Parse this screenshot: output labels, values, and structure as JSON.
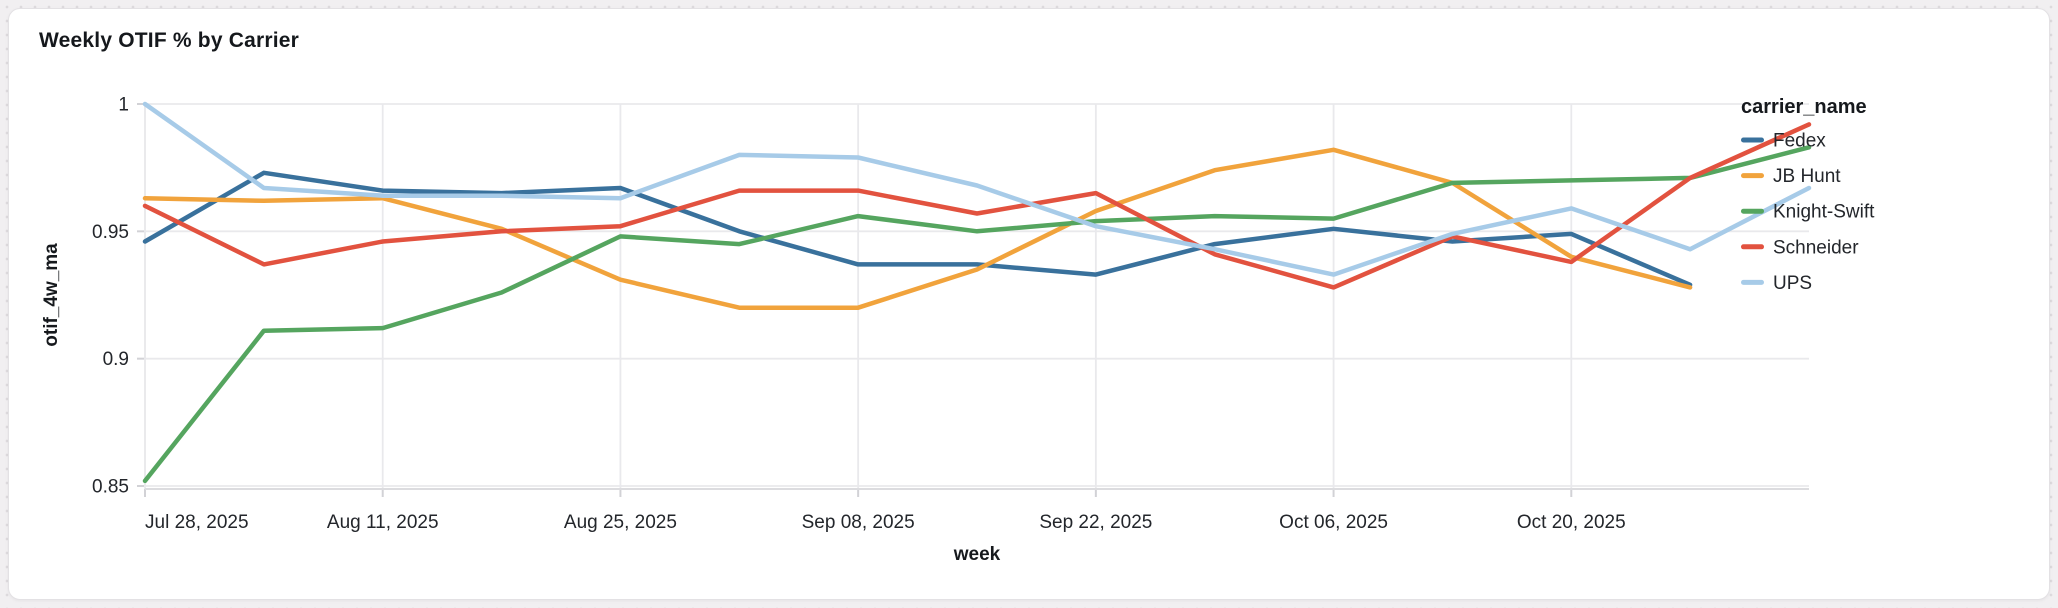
{
  "card": {
    "title": "Weekly OTIF % by Carrier"
  },
  "chart_data": {
    "type": "line",
    "title": "Weekly OTIF % by Carrier",
    "xlabel": "week",
    "ylabel": "otif_4w_ma",
    "legend_title": "carrier_name",
    "legend_position": "right",
    "grid": true,
    "ylim": [
      0.85,
      1.0
    ],
    "y_ticks": [
      {
        "value": 1.0,
        "label": "1"
      },
      {
        "value": 0.95,
        "label": "0.95"
      },
      {
        "value": 0.9,
        "label": "0.9"
      },
      {
        "value": 0.85,
        "label": "0.85"
      }
    ],
    "x": [
      "Jul 28, 2025",
      "Aug 04, 2025",
      "Aug 11, 2025",
      "Aug 18, 2025",
      "Aug 25, 2025",
      "Sep 01, 2025",
      "Sep 08, 2025",
      "Sep 15, 2025",
      "Sep 22, 2025",
      "Sep 29, 2025",
      "Oct 06, 2025",
      "Oct 13, 2025",
      "Oct 20, 2025",
      "Oct 27, 2025",
      "Nov 03, 2025"
    ],
    "x_tick_indices": [
      0,
      2,
      4,
      6,
      8,
      10,
      12
    ],
    "x_tick_labels": [
      "Jul 28, 2025",
      "Aug 11, 2025",
      "Aug 25, 2025",
      "Sep 08, 2025",
      "Sep 22, 2025",
      "Oct 06, 2025",
      "Oct 20, 2025"
    ],
    "series": [
      {
        "name": "Fedex",
        "color": "#39719c",
        "values": [
          0.946,
          0.973,
          0.966,
          0.965,
          0.967,
          0.95,
          0.937,
          0.937,
          0.933,
          0.945,
          0.951,
          0.946,
          0.949,
          0.929
        ]
      },
      {
        "name": "JB Hunt",
        "color": "#f1a33c",
        "values": [
          0.963,
          0.962,
          0.963,
          0.951,
          0.931,
          0.92,
          0.92,
          0.935,
          0.958,
          0.974,
          0.982,
          0.969,
          0.94,
          0.928
        ]
      },
      {
        "name": "Knight-Swift",
        "color": "#55a55f",
        "values": [
          0.852,
          0.911,
          0.912,
          0.926,
          0.948,
          0.945,
          0.956,
          0.95,
          0.954,
          0.956,
          0.955,
          0.969,
          0.97,
          0.971,
          0.983
        ]
      },
      {
        "name": "Schneider",
        "color": "#e2523f",
        "values": [
          0.96,
          0.937,
          0.946,
          0.95,
          0.952,
          0.966,
          0.966,
          0.957,
          0.965,
          0.941,
          0.928,
          0.948,
          0.938,
          0.971,
          0.992
        ]
      },
      {
        "name": "UPS",
        "color": "#a7cbe8",
        "values": [
          1.0,
          0.967,
          0.964,
          0.964,
          0.963,
          0.98,
          0.979,
          0.968,
          0.952,
          0.943,
          0.933,
          0.949,
          0.959,
          0.943,
          0.967
        ]
      }
    ]
  }
}
